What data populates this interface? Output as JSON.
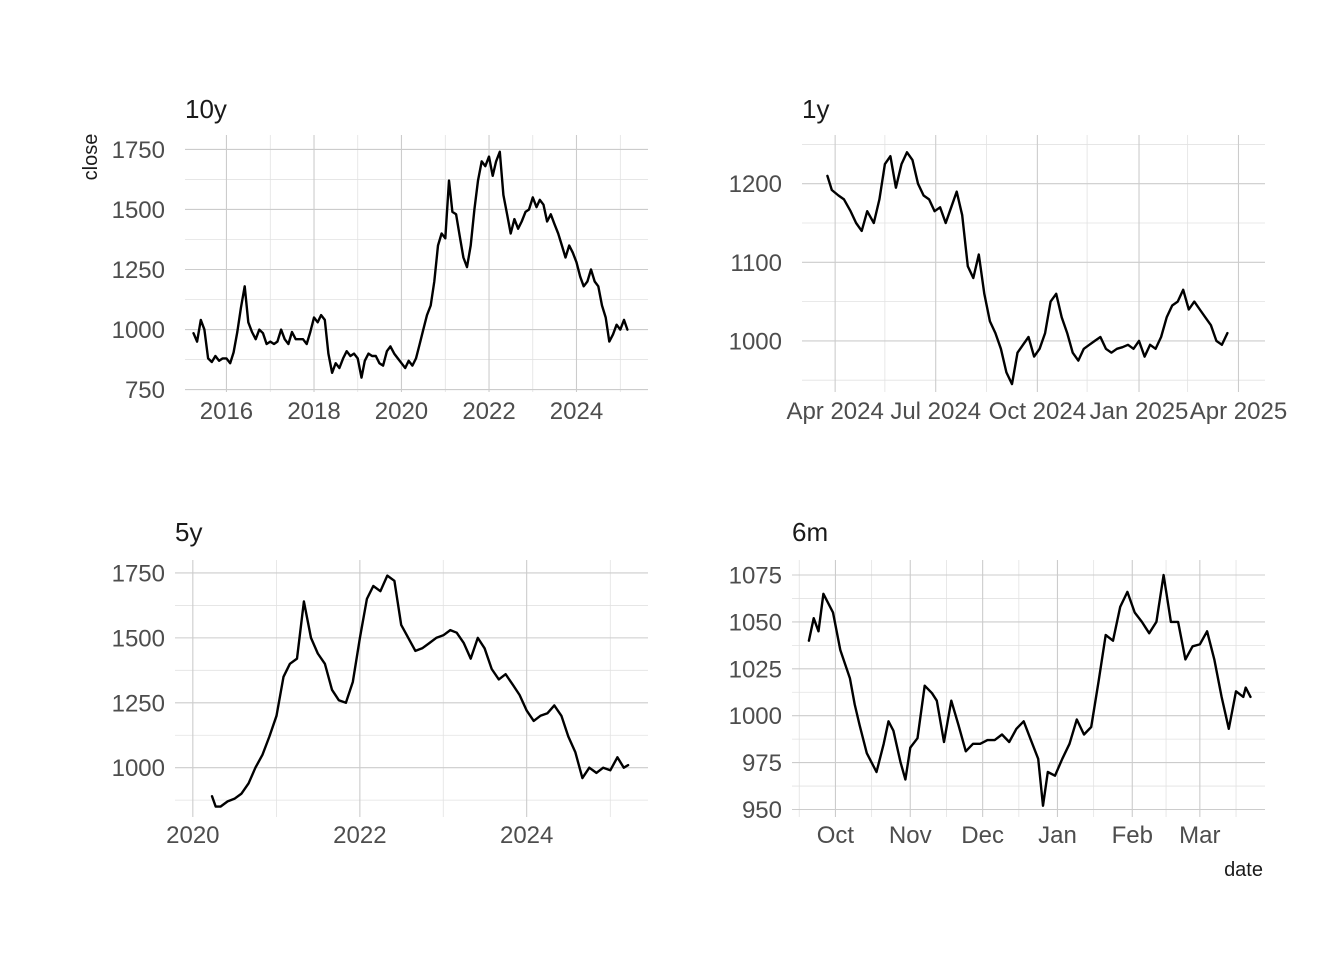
{
  "chart_data": [
    {
      "type": "line",
      "title": "10y",
      "xlabel": "",
      "ylabel": "close",
      "x_ticks": [
        "2016",
        "2018",
        "2020",
        "2022",
        "2024"
      ],
      "y_ticks": [
        "750",
        "1000",
        "1250",
        "1500",
        "1750"
      ],
      "xlim": [
        "2015-01-20",
        "2025-08-20"
      ],
      "ylim": [
        740,
        1810
      ],
      "grid": true,
      "series": [
        {
          "x": [
            "2015-04-01",
            "2015-05-01",
            "2015-06-01",
            "2015-07-01",
            "2015-08-01",
            "2015-09-01",
            "2015-10-01",
            "2015-11-01",
            "2015-12-01",
            "2016-01-01",
            "2016-02-01",
            "2016-03-01",
            "2016-04-01",
            "2016-05-01",
            "2016-06-01",
            "2016-07-01",
            "2016-08-01",
            "2016-09-01",
            "2016-10-01",
            "2016-11-01",
            "2016-12-01",
            "2017-01-01",
            "2017-02-01",
            "2017-03-01",
            "2017-04-01",
            "2017-05-01",
            "2017-06-01",
            "2017-07-01",
            "2017-08-01",
            "2017-09-01",
            "2017-10-01",
            "2017-11-01",
            "2017-12-01",
            "2018-01-01",
            "2018-02-01",
            "2018-03-01",
            "2018-04-01",
            "2018-05-01",
            "2018-06-01",
            "2018-07-01",
            "2018-08-01",
            "2018-09-01",
            "2018-10-01",
            "2018-11-01",
            "2018-12-01",
            "2019-01-01",
            "2019-02-01",
            "2019-03-01",
            "2019-04-01",
            "2019-05-01",
            "2019-06-01",
            "2019-07-01",
            "2019-08-01",
            "2019-09-01",
            "2019-10-01",
            "2019-11-01",
            "2019-12-01",
            "2020-01-01",
            "2020-02-01",
            "2020-03-01",
            "2020-04-01",
            "2020-05-01",
            "2020-06-01",
            "2020-07-01",
            "2020-08-01",
            "2020-09-01",
            "2020-10-01",
            "2020-11-01",
            "2020-12-01",
            "2021-01-01",
            "2021-02-01",
            "2021-03-01",
            "2021-04-01",
            "2021-05-01",
            "2021-06-01",
            "2021-07-01",
            "2021-08-01",
            "2021-09-01",
            "2021-10-01",
            "2021-11-01",
            "2021-12-01",
            "2022-01-01",
            "2022-02-01",
            "2022-03-01",
            "2022-04-01",
            "2022-05-01",
            "2022-06-01",
            "2022-07-01",
            "2022-08-01",
            "2022-09-01",
            "2022-10-01",
            "2022-11-01",
            "2022-12-01",
            "2023-01-01",
            "2023-02-01",
            "2023-03-01",
            "2023-04-01",
            "2023-05-01",
            "2023-06-01",
            "2023-07-01",
            "2023-08-01",
            "2023-09-01",
            "2023-10-01",
            "2023-11-01",
            "2023-12-01",
            "2024-01-01",
            "2024-02-01",
            "2024-03-01",
            "2024-04-01",
            "2024-05-01",
            "2024-06-01",
            "2024-07-01",
            "2024-08-01",
            "2024-09-01",
            "2024-10-01",
            "2024-11-01",
            "2024-12-01",
            "2025-01-01",
            "2025-02-01",
            "2025-03-01"
          ],
          "y": [
            985,
            950,
            1040,
            1000,
            880,
            865,
            890,
            870,
            880,
            880,
            860,
            905,
            990,
            1090,
            1180,
            1030,
            990,
            960,
            1000,
            985,
            940,
            950,
            940,
            950,
            1000,
            960,
            940,
            990,
            960,
            960,
            960,
            940,
            990,
            1050,
            1030,
            1060,
            1040,
            900,
            820,
            860,
            840,
            880,
            910,
            890,
            900,
            880,
            800,
            870,
            900,
            890,
            890,
            860,
            850,
            910,
            930,
            900,
            880,
            860,
            840,
            870,
            850,
            880,
            940,
            1000,
            1060,
            1100,
            1200,
            1350,
            1400,
            1380,
            1620,
            1490,
            1480,
            1390,
            1300,
            1260,
            1350,
            1500,
            1620,
            1700,
            1680,
            1720,
            1640,
            1700,
            1740,
            1560,
            1480,
            1400,
            1460,
            1420,
            1450,
            1490,
            1500,
            1550,
            1510,
            1540,
            1520,
            1450,
            1480,
            1440,
            1400,
            1350,
            1300,
            1350,
            1320,
            1280,
            1220,
            1180,
            1200,
            1250,
            1200,
            1180,
            1100,
            1050,
            950,
            980,
            1020,
            1000,
            1040,
            1000
          ]
        }
      ]
    },
    {
      "type": "line",
      "title": "1y",
      "xlabel": "",
      "ylabel": "",
      "x_ticks": [
        "Apr 2024",
        "Jul 2024",
        "Oct 2024",
        "Jan 2025",
        "Apr 2025"
      ],
      "y_ticks": [
        "1000",
        "1100",
        "1200"
      ],
      "xlim": [
        "2024-03-02",
        "2025-04-25"
      ],
      "ylim": [
        935,
        1262
      ],
      "grid": true,
      "series": [
        {
          "x": [
            "2024-03-25",
            "2024-03-29",
            "2024-04-04",
            "2024-04-09",
            "2024-04-15",
            "2024-04-20",
            "2024-04-25",
            "2024-04-30",
            "2024-05-06",
            "2024-05-11",
            "2024-05-16",
            "2024-05-21",
            "2024-05-26",
            "2024-05-31",
            "2024-06-05",
            "2024-06-10",
            "2024-06-15",
            "2024-06-20",
            "2024-06-25",
            "2024-06-30",
            "2024-07-05",
            "2024-07-10",
            "2024-07-15",
            "2024-07-20",
            "2024-07-25",
            "2024-07-30",
            "2024-08-04",
            "2024-08-09",
            "2024-08-14",
            "2024-08-19",
            "2024-08-24",
            "2024-08-29",
            "2024-09-03",
            "2024-09-08",
            "2024-09-13",
            "2024-09-18",
            "2024-09-23",
            "2024-09-28",
            "2024-10-03",
            "2024-10-08",
            "2024-10-13",
            "2024-10-18",
            "2024-10-23",
            "2024-10-28",
            "2024-11-02",
            "2024-11-07",
            "2024-11-12",
            "2024-11-17",
            "2024-11-22",
            "2024-11-27",
            "2024-12-02",
            "2024-12-07",
            "2024-12-12",
            "2024-12-17",
            "2024-12-22",
            "2024-12-27",
            "2025-01-01",
            "2025-01-06",
            "2025-01-11",
            "2025-01-16",
            "2025-01-21",
            "2025-01-26",
            "2025-01-31",
            "2025-02-05",
            "2025-02-10",
            "2025-02-15",
            "2025-02-20",
            "2025-02-25",
            "2025-03-02",
            "2025-03-07",
            "2025-03-12",
            "2025-03-17",
            "2025-03-22"
          ],
          "y": [
            1210,
            1192,
            1185,
            1180,
            1165,
            1150,
            1140,
            1165,
            1150,
            1180,
            1225,
            1235,
            1195,
            1225,
            1240,
            1230,
            1200,
            1185,
            1180,
            1165,
            1170,
            1150,
            1170,
            1190,
            1160,
            1095,
            1080,
            1110,
            1060,
            1025,
            1010,
            990,
            960,
            945,
            985,
            995,
            1005,
            980,
            990,
            1010,
            1050,
            1060,
            1030,
            1010,
            985,
            975,
            990,
            995,
            1000,
            1005,
            990,
            985,
            990,
            992,
            995,
            990,
            1000,
            980,
            995,
            990,
            1005,
            1030,
            1045,
            1050,
            1065,
            1040,
            1050,
            1040,
            1030,
            1020,
            1000,
            995,
            1010
          ]
        }
      ]
    },
    {
      "type": "line",
      "title": "5y",
      "xlabel": "",
      "ylabel": "",
      "x_ticks": [
        "2020",
        "2022",
        "2024"
      ],
      "y_ticks": [
        "1000",
        "1250",
        "1500",
        "1750"
      ],
      "xlim": [
        "2019-10-15",
        "2025-06-15"
      ],
      "ylim": [
        810,
        1800
      ],
      "grid": true,
      "series": [
        {
          "x": [
            "2020-03-25",
            "2020-04-10",
            "2020-05-01",
            "2020-06-01",
            "2020-07-01",
            "2020-08-01",
            "2020-09-01",
            "2020-10-01",
            "2020-11-01",
            "2020-12-01",
            "2021-01-01",
            "2021-02-01",
            "2021-03-01",
            "2021-04-01",
            "2021-05-01",
            "2021-06-01",
            "2021-07-01",
            "2021-08-01",
            "2021-09-01",
            "2021-10-01",
            "2021-11-01",
            "2021-12-01",
            "2022-01-01",
            "2022-02-01",
            "2022-03-01",
            "2022-04-01",
            "2022-05-01",
            "2022-06-01",
            "2022-07-01",
            "2022-08-01",
            "2022-09-01",
            "2022-10-01",
            "2022-11-01",
            "2022-12-01",
            "2023-01-01",
            "2023-02-01",
            "2023-03-01",
            "2023-04-01",
            "2023-05-01",
            "2023-06-01",
            "2023-07-01",
            "2023-08-01",
            "2023-09-01",
            "2023-10-01",
            "2023-11-01",
            "2023-12-01",
            "2024-01-01",
            "2024-02-01",
            "2024-03-01",
            "2024-04-01",
            "2024-05-01",
            "2024-06-01",
            "2024-07-01",
            "2024-08-01",
            "2024-09-01",
            "2024-10-01",
            "2024-11-01",
            "2024-12-01",
            "2025-01-01",
            "2025-02-01",
            "2025-03-01",
            "2025-03-20"
          ],
          "y": [
            890,
            850,
            850,
            870,
            880,
            900,
            940,
            1000,
            1050,
            1120,
            1200,
            1350,
            1400,
            1420,
            1640,
            1500,
            1440,
            1400,
            1300,
            1260,
            1250,
            1330,
            1500,
            1650,
            1700,
            1680,
            1740,
            1720,
            1550,
            1500,
            1450,
            1460,
            1480,
            1500,
            1510,
            1530,
            1520,
            1480,
            1420,
            1500,
            1460,
            1380,
            1340,
            1360,
            1320,
            1280,
            1220,
            1180,
            1200,
            1210,
            1240,
            1200,
            1120,
            1060,
            960,
            1000,
            980,
            1000,
            990,
            1040,
            1000,
            1010
          ]
        }
      ]
    },
    {
      "type": "line",
      "title": "6m",
      "xlabel": "date",
      "ylabel": "",
      "x_ticks": [
        "Oct",
        "Nov",
        "Dec",
        "Jan",
        "Feb",
        "Mar"
      ],
      "y_ticks": [
        "950",
        "975",
        "1000",
        "1025",
        "1050",
        "1075"
      ],
      "xlim": [
        "2024-09-13",
        "2025-03-28"
      ],
      "ylim": [
        946,
        1083
      ],
      "grid": true,
      "series": [
        {
          "x": [
            "2024-09-20",
            "2024-09-22",
            "2024-09-24",
            "2024-09-26",
            "2024-09-30",
            "2024-10-03",
            "2024-10-07",
            "2024-10-09",
            "2024-10-11",
            "2024-10-14",
            "2024-10-18",
            "2024-10-21",
            "2024-10-23",
            "2024-10-25",
            "2024-10-28",
            "2024-10-30",
            "2024-11-01",
            "2024-11-04",
            "2024-11-07",
            "2024-11-10",
            "2024-11-12",
            "2024-11-15",
            "2024-11-18",
            "2024-11-21",
            "2024-11-24",
            "2024-11-27",
            "2024-11-30",
            "2024-12-03",
            "2024-12-06",
            "2024-12-09",
            "2024-12-12",
            "2024-12-15",
            "2024-12-18",
            "2024-12-21",
            "2024-12-24",
            "2024-12-26",
            "2024-12-28",
            "2024-12-31",
            "2025-01-03",
            "2025-01-06",
            "2025-01-09",
            "2025-01-12",
            "2025-01-15",
            "2025-01-18",
            "2025-01-21",
            "2025-01-24",
            "2025-01-27",
            "2025-01-30",
            "2025-02-02",
            "2025-02-05",
            "2025-02-08",
            "2025-02-11",
            "2025-02-14",
            "2025-02-17",
            "2025-02-20",
            "2025-02-23",
            "2025-02-26",
            "2025-03-01",
            "2025-03-04",
            "2025-03-07",
            "2025-03-10",
            "2025-03-13",
            "2025-03-16",
            "2025-03-19",
            "2025-03-20",
            "2025-03-22"
          ],
          "y": [
            1040,
            1052,
            1045,
            1065,
            1055,
            1035,
            1020,
            1006,
            995,
            980,
            970,
            985,
            997,
            992,
            975,
            966,
            983,
            988,
            1016,
            1012,
            1008,
            986,
            1008,
            995,
            981,
            985,
            985,
            987,
            987,
            990,
            986,
            993,
            997,
            987,
            977,
            952,
            970,
            968,
            977,
            985,
            998,
            990,
            994,
            1018,
            1043,
            1040,
            1058,
            1066,
            1055,
            1050,
            1044,
            1050,
            1075,
            1050,
            1050,
            1030,
            1037,
            1038,
            1045,
            1030,
            1010,
            993,
            1013,
            1010,
            1015,
            1010
          ]
        }
      ]
    }
  ]
}
